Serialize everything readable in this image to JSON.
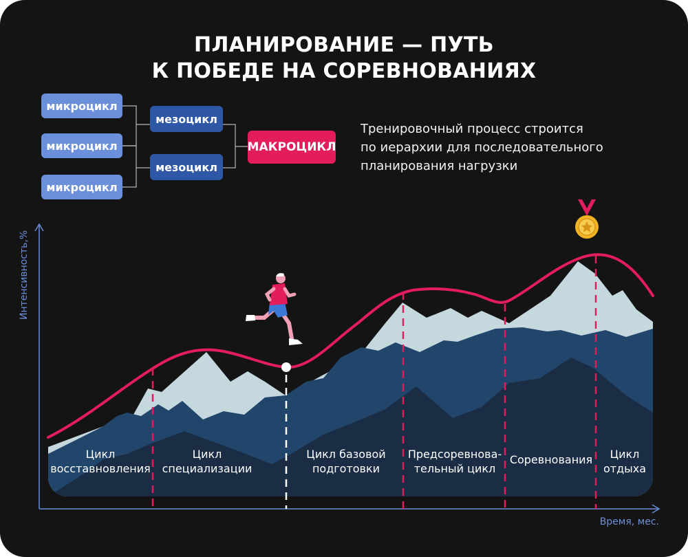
{
  "title": {
    "line1": "ПЛАНИРОВАНИЕ — ПУТЬ",
    "line2": "К ПОБЕДЕ НА СОРЕВНОВАНИЯХ"
  },
  "hierarchy": {
    "micro_labels": [
      "микроцикл",
      "микроцикл",
      "микроцикл"
    ],
    "meso_labels": [
      "мезоцикл",
      "мезоцикл"
    ],
    "macro_label": "МАКРОЦИКЛ"
  },
  "description": {
    "line1": "Тренировочный процесс строится",
    "line2": "по иерархии для последовательного",
    "line3": "планирования нагрузки"
  },
  "axes": {
    "y_label": "Интенсивность,%",
    "x_label": "Время, мес."
  },
  "stages": [
    {
      "line1": "Цикл",
      "line2": "восставновления"
    },
    {
      "line1": "Цикл",
      "line2": "специализации"
    },
    {
      "line1": "Цикл базовой",
      "line2": "подготовки"
    },
    {
      "line1": "Предсоревнова-",
      "line2": "тельный цикл"
    },
    {
      "line1": "Соревнования",
      "line2": ""
    },
    {
      "line1": "Цикл",
      "line2": "отдыха"
    }
  ],
  "icons": {
    "runner": "runner-icon",
    "medal": "medal-icon"
  },
  "colors": {
    "background": "#141414",
    "accent": "#e31d5c",
    "micro": "#6b8fd9",
    "meso": "#2e57a6",
    "mountain_light": "#c5d8de",
    "mountain_mid": "#22456b",
    "mountain_dark": "#1a2d45"
  }
}
